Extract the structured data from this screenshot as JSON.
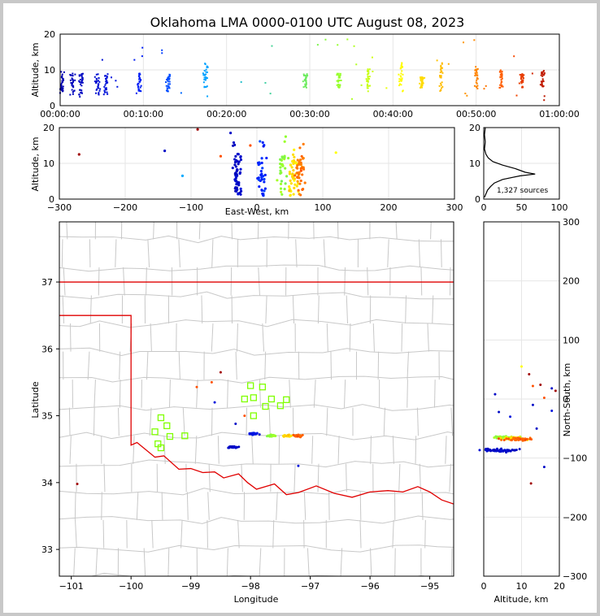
{
  "title": "Oklahoma LMA 0000-0100 UTC August 08, 2023",
  "colors": {
    "state_border": "#e00000",
    "county": "#c8c8c8",
    "station": "#7fff00"
  },
  "chart_data": [
    {
      "panel": "time-altitude",
      "type": "scatter",
      "ylabel": "Altitude, km",
      "ylim": [
        0,
        20
      ],
      "yticks": [
        "0",
        "10",
        "20"
      ],
      "xlim_minutes": [
        0,
        60
      ],
      "xticks": [
        "00:00:00",
        "00:10:00",
        "00:20:00",
        "00:30:00",
        "00:40:00",
        "00:50:00",
        "01:00:00"
      ],
      "color_by": "time (blue → red)",
      "clusters": [
        {
          "t": 0.2,
          "alt": [
            3,
            10
          ]
        },
        {
          "t": 1.5,
          "alt": [
            3,
            9
          ]
        },
        {
          "t": 2.5,
          "alt": [
            3,
            9
          ]
        },
        {
          "t": 4.5,
          "alt": [
            3,
            9
          ]
        },
        {
          "t": 5.5,
          "alt": [
            3,
            9
          ]
        },
        {
          "t": 9.5,
          "alt": [
            4,
            9
          ]
        },
        {
          "t": 13.0,
          "alt": [
            4,
            9
          ]
        },
        {
          "t": 17.5,
          "alt": [
            5,
            12
          ]
        },
        {
          "t": 29.5,
          "alt": [
            5,
            9
          ]
        },
        {
          "t": 33.5,
          "alt": [
            5,
            9
          ]
        },
        {
          "t": 37.0,
          "alt": [
            4,
            11
          ]
        },
        {
          "t": 41.0,
          "alt": [
            4,
            12
          ]
        },
        {
          "t": 43.5,
          "alt": [
            5,
            8
          ]
        },
        {
          "t": 45.8,
          "alt": [
            4,
            12
          ]
        },
        {
          "t": 50.0,
          "alt": [
            4,
            11
          ]
        },
        {
          "t": 53.0,
          "alt": [
            5,
            10
          ]
        },
        {
          "t": 55.5,
          "alt": [
            5,
            9
          ]
        },
        {
          "t": 58.0,
          "alt": [
            5,
            10
          ]
        }
      ]
    },
    {
      "panel": "east-west-altitude",
      "type": "scatter",
      "xlabel": "East-West, km",
      "ylabel": "Altitude, km",
      "xlim": [
        -300,
        300
      ],
      "ylim": [
        0,
        20
      ],
      "xticks": [
        "−300",
        "−200",
        "−100",
        "0",
        "100",
        "200",
        "300"
      ],
      "yticks": [
        "0",
        "10",
        "20"
      ]
    },
    {
      "panel": "altitude-histogram",
      "type": "line",
      "xlim": [
        0,
        100
      ],
      "ylim": [
        0,
        20
      ],
      "xticks": [
        "0",
        "50",
        "100"
      ],
      "yticks": [
        "0",
        "10",
        "20"
      ],
      "annotation": "1,327 sources",
      "profile": [
        [
          1,
          0.5
        ],
        [
          3,
          1.5
        ],
        [
          5,
          2.5
        ],
        [
          9,
          3.5
        ],
        [
          14,
          4.5
        ],
        [
          25,
          5.5
        ],
        [
          48,
          6.5
        ],
        [
          68,
          7.0
        ],
        [
          55,
          7.5
        ],
        [
          42,
          8.5
        ],
        [
          25,
          9.5
        ],
        [
          12,
          10.5
        ],
        [
          6,
          11.5
        ],
        [
          3,
          12.5
        ],
        [
          1,
          14
        ],
        [
          2,
          16
        ],
        [
          1,
          18
        ],
        [
          2,
          20
        ]
      ]
    },
    {
      "panel": "plan-view",
      "type": "scatter",
      "xlabel": "Longitude",
      "ylabel": "Latitude",
      "xlim": [
        -101.2,
        -94.6
      ],
      "ylim": [
        32.6,
        37.9
      ],
      "xticks": [
        "−101",
        "−100",
        "−99",
        "−98",
        "−97",
        "−96",
        "−95"
      ],
      "yticks": [
        "33",
        "34",
        "35",
        "36",
        "37"
      ],
      "stations_marker": "open square",
      "stations": [
        [
          -99.6,
          34.76
        ],
        [
          -99.5,
          34.97
        ],
        [
          -99.4,
          34.85
        ],
        [
          -99.35,
          34.69
        ],
        [
          -99.1,
          34.7
        ],
        [
          -98.1,
          35.25
        ],
        [
          -98.0,
          35.45
        ],
        [
          -97.95,
          35.27
        ],
        [
          -97.8,
          35.43
        ],
        [
          -97.75,
          35.14
        ],
        [
          -97.65,
          35.25
        ],
        [
          -97.5,
          35.15
        ],
        [
          -97.4,
          35.24
        ],
        [
          -97.95,
          35.0
        ],
        [
          -99.55,
          34.58
        ],
        [
          -99.5,
          34.52
        ]
      ]
    },
    {
      "panel": "north-south-altitude",
      "type": "scatter",
      "xlabel": "Altitude, km",
      "ylabel": "North-South, km",
      "xlim": [
        0,
        20
      ],
      "ylim": [
        -300,
        300
      ],
      "xticks": [
        "0",
        "10",
        "20"
      ],
      "yticks": [
        "−300",
        "−200",
        "−100",
        "0",
        "100",
        "200",
        "300"
      ]
    }
  ]
}
